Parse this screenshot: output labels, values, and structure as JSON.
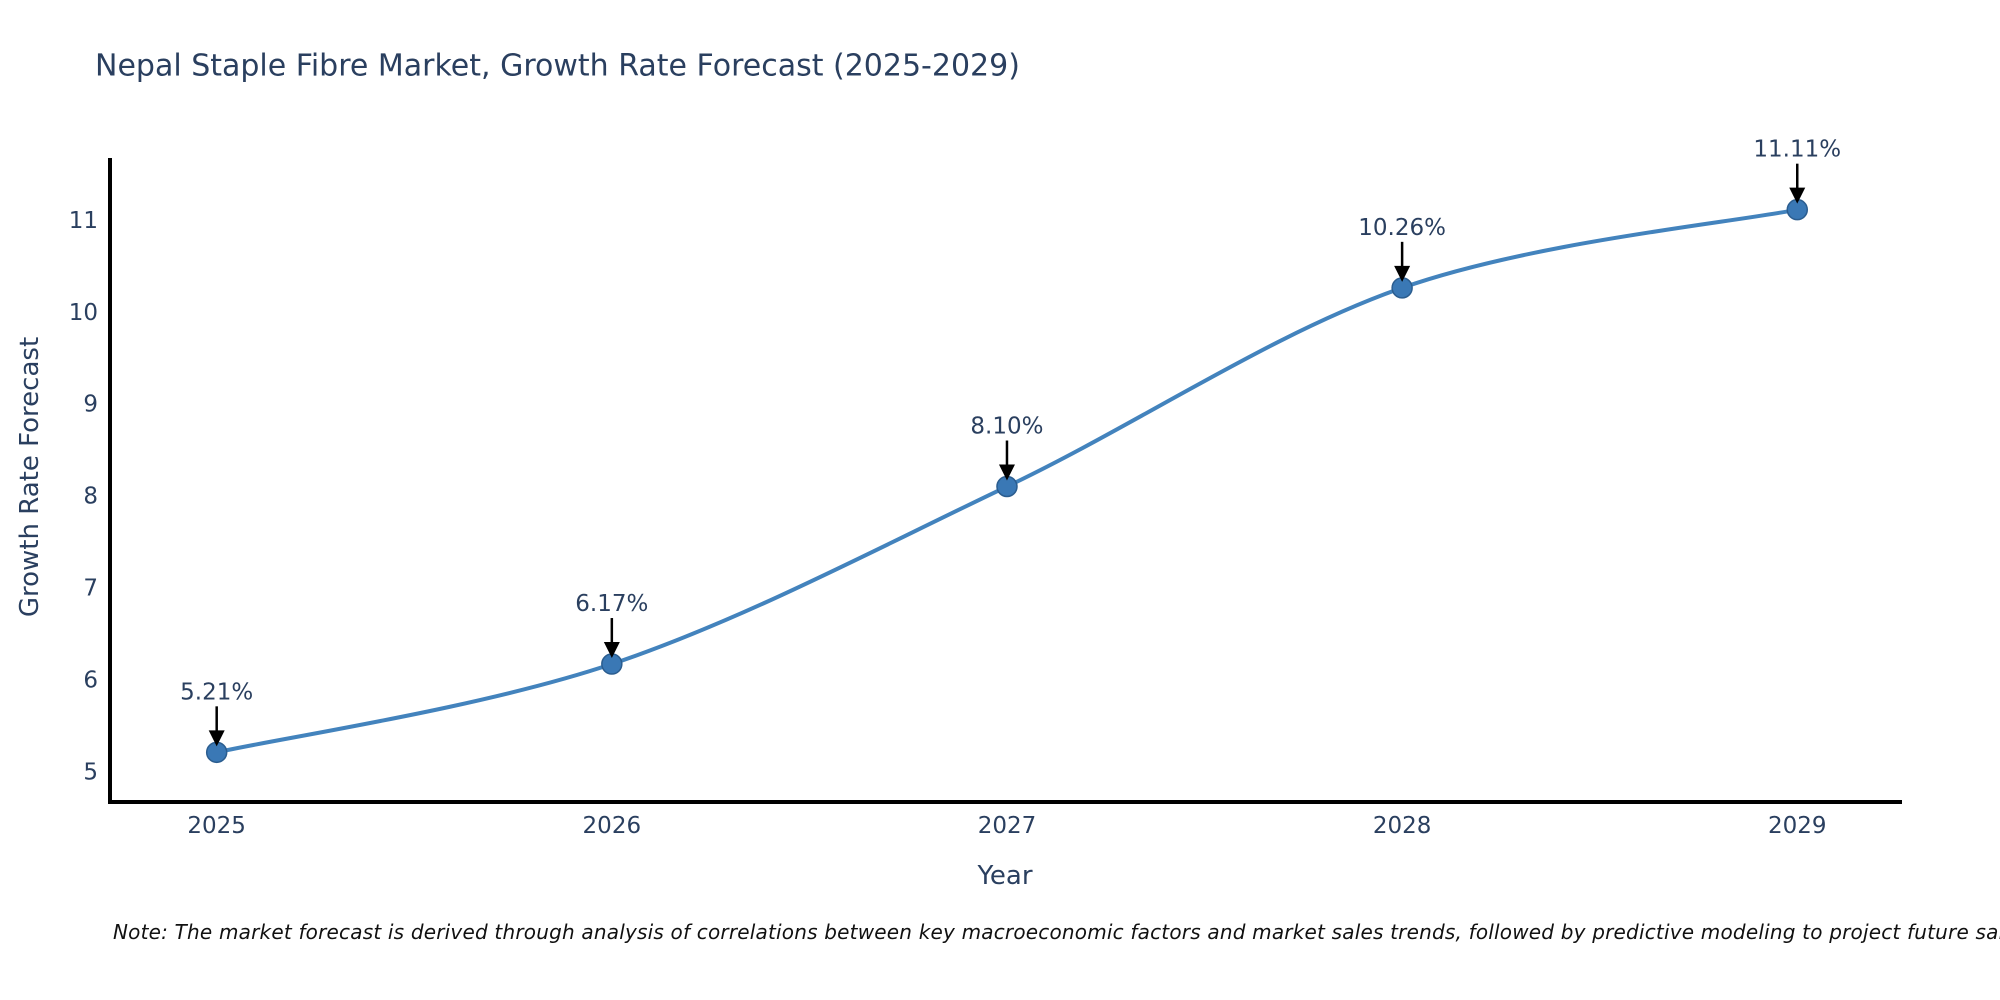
{
  "header": {
    "title": "Nepal Staple Fibre Market, Growth Rate Forecast (2025-2029)"
  },
  "chart_data": {
    "type": "line",
    "title": "Nepal Staple Fibre Market, Growth Rate Forecast (2025-2029)",
    "xlabel": "Year",
    "ylabel": "Growth Rate Forecast",
    "x": [
      2025,
      2026,
      2027,
      2028,
      2029
    ],
    "y": [
      5.21,
      6.17,
      8.1,
      10.26,
      11.11
    ],
    "point_labels": [
      "5.21%",
      "6.17%",
      "8.10%",
      "10.26%",
      "11.11%"
    ],
    "x_tick_labels": [
      "2025",
      "2026",
      "2027",
      "2028",
      "2029"
    ],
    "y_ticks": [
      5,
      6,
      7,
      8,
      9,
      10,
      11
    ],
    "xlim": [
      2024.73,
      2029.26
    ],
    "ylim": [
      4.67,
      11.65
    ],
    "line_shape": "spline",
    "grid": false,
    "legend_position": "none",
    "annotations_style": "black-arrow-pointing-down-to-marker",
    "colors": {
      "line": "#4383bd",
      "marker_fill": "#3a78b5",
      "marker_edge": "#2b5d8f",
      "axis_line": "#000000",
      "tick_text": "#2a3f5f",
      "title_text": "#2a3f5f",
      "arrow": "#000000",
      "note_text": "#111111",
      "background": "#ffffff"
    }
  },
  "footer": {
    "note": "Note: The market forecast is derived through analysis of correlations between key macroeconomic factors and market sales trends, followed by predictive modeling to project future sales"
  }
}
